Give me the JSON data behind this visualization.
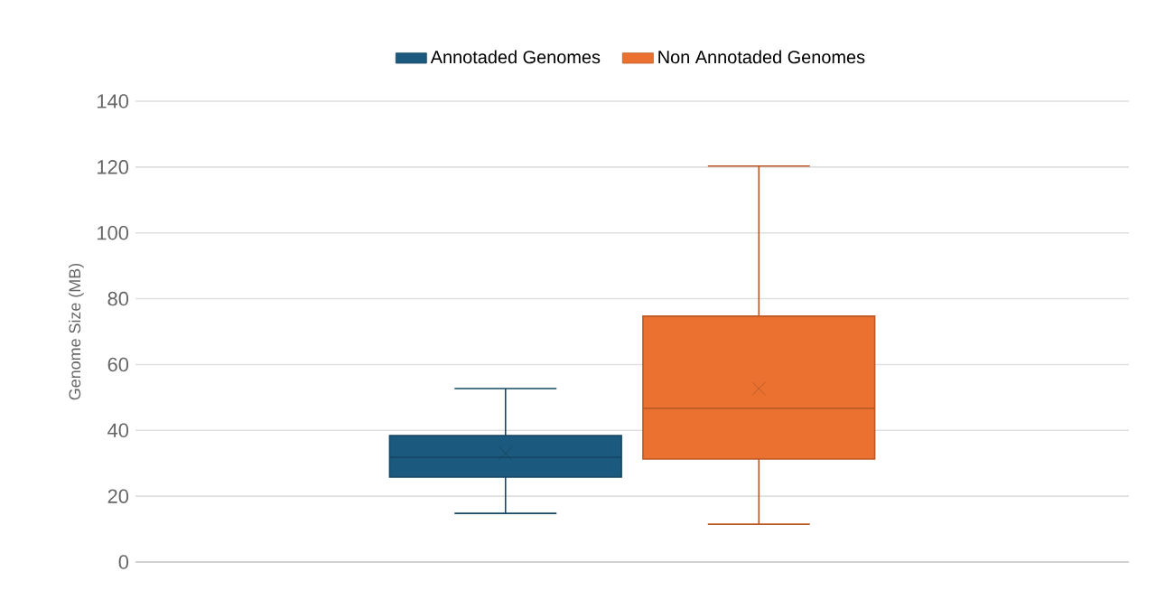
{
  "chart_data": {
    "type": "box",
    "categories": [
      null
    ],
    "ylabel": "Genome Size (MB)",
    "ylim": [
      0,
      140
    ],
    "yticks": [
      0,
      20,
      40,
      60,
      80,
      100,
      120,
      140
    ],
    "grid": "y",
    "legend": "top",
    "series": [
      {
        "name": "Annotaded Genomes",
        "color": "#1b5a7e",
        "boxes": [
          {
            "low": 14.8,
            "q1": 25.8,
            "median": 31.8,
            "q3": 38.4,
            "high": 52.7,
            "mean": 33
          }
        ]
      },
      {
        "name": "Non Annotaded Genomes",
        "color": "#ea7130",
        "boxes": [
          {
            "low": 11.5,
            "q1": 31.3,
            "median": 46.7,
            "q3": 74.7,
            "high": 120.3,
            "mean": 52.7
          }
        ]
      }
    ]
  }
}
